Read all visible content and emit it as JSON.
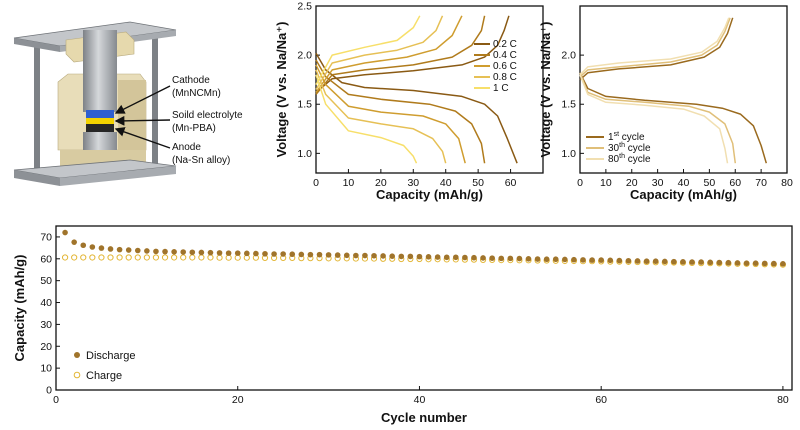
{
  "colors": {
    "ink": "#111111",
    "metal": "#9a9ea3",
    "metal_dark": "#6f7378",
    "plate": "#b9bcc0",
    "ceramic": "#e7dcb8",
    "ceramic_dark": "#cbbd92",
    "cathode": "#2f5fd0",
    "electrolyte": "#f2d200",
    "anode": "#262626",
    "discharge": "#a0742b",
    "charge": "#e3b635",
    "rate_colors": [
      "#8a5a14",
      "#b07b1c",
      "#cf9d2f",
      "#e6c055",
      "#f7df6a"
    ],
    "cycle_colors": [
      "#9a6a1e",
      "#e0bf79",
      "#f1dfb1"
    ]
  },
  "cell_diagram": {
    "labels": [
      {
        "line1": "Cathode",
        "line2": "(MnNCMn)"
      },
      {
        "line1": "Soild electrolyte",
        "line2": "(Mn-PBA)"
      },
      {
        "line1": "Anode",
        "line2": "(Na-Sn alloy)"
      }
    ]
  },
  "chart_data": [
    {
      "id": "rate",
      "type": "line",
      "xlabel": "Capacity (mAh/g)",
      "ylabel": "Voltage (V vs. Na/Na⁺)",
      "xlim": [
        0,
        70
      ],
      "ylim": [
        0.8,
        2.5
      ],
      "xticks": [
        0,
        10,
        20,
        30,
        40,
        50,
        60
      ],
      "yticks": [
        1.0,
        1.5,
        2.0,
        2.5
      ],
      "ytick_labels": [
        "1.0",
        "1.5",
        "2.0",
        "2.5"
      ],
      "legend": "top-right",
      "series": [
        {
          "name": "0.2 C",
          "discharge": [
            [
              0,
              2.02
            ],
            [
              3,
              1.85
            ],
            [
              8,
              1.72
            ],
            [
              15,
              1.67
            ],
            [
              30,
              1.64
            ],
            [
              45,
              1.58
            ],
            [
              52,
              1.5
            ],
            [
              56,
              1.38
            ],
            [
              59,
              1.15
            ],
            [
              62,
              0.9
            ]
          ],
          "charge": [
            [
              0,
              1.62
            ],
            [
              5,
              1.76
            ],
            [
              15,
              1.8
            ],
            [
              30,
              1.84
            ],
            [
              45,
              1.9
            ],
            [
              52,
              1.98
            ],
            [
              56,
              2.1
            ],
            [
              58,
              2.25
            ],
            [
              59.5,
              2.4
            ]
          ]
        },
        {
          "name": "0.4 C",
          "discharge": [
            [
              0,
              1.95
            ],
            [
              3,
              1.78
            ],
            [
              10,
              1.6
            ],
            [
              20,
              1.55
            ],
            [
              35,
              1.5
            ],
            [
              43,
              1.43
            ],
            [
              48,
              1.3
            ],
            [
              51,
              1.1
            ],
            [
              52,
              0.9
            ]
          ],
          "charge": [
            [
              0,
              1.6
            ],
            [
              5,
              1.8
            ],
            [
              15,
              1.85
            ],
            [
              30,
              1.9
            ],
            [
              42,
              1.98
            ],
            [
              48,
              2.1
            ],
            [
              51,
              2.25
            ],
            [
              52,
              2.4
            ]
          ]
        },
        {
          "name": "0.6 C",
          "discharge": [
            [
              0,
              1.9
            ],
            [
              3,
              1.7
            ],
            [
              10,
              1.48
            ],
            [
              20,
              1.42
            ],
            [
              33,
              1.38
            ],
            [
              40,
              1.3
            ],
            [
              44,
              1.15
            ],
            [
              46,
              0.9
            ]
          ],
          "charge": [
            [
              0,
              1.62
            ],
            [
              5,
              1.85
            ],
            [
              15,
              1.92
            ],
            [
              28,
              1.98
            ],
            [
              37,
              2.06
            ],
            [
              42,
              2.2
            ],
            [
              45,
              2.4
            ]
          ]
        },
        {
          "name": "0.8 C",
          "discharge": [
            [
              0,
              1.85
            ],
            [
              3,
              1.6
            ],
            [
              10,
              1.36
            ],
            [
              20,
              1.3
            ],
            [
              30,
              1.25
            ],
            [
              36,
              1.15
            ],
            [
              39,
              1.02
            ],
            [
              40,
              0.9
            ]
          ],
          "charge": [
            [
              0,
              1.65
            ],
            [
              5,
              1.92
            ],
            [
              15,
              2.0
            ],
            [
              25,
              2.05
            ],
            [
              33,
              2.13
            ],
            [
              37,
              2.25
            ],
            [
              39,
              2.4
            ]
          ]
        },
        {
          "name": "1 C",
          "discharge": [
            [
              0,
              1.8
            ],
            [
              3,
              1.5
            ],
            [
              10,
              1.23
            ],
            [
              20,
              1.16
            ],
            [
              27,
              1.08
            ],
            [
              30,
              0.97
            ],
            [
              31,
              0.9
            ]
          ],
          "charge": [
            [
              0,
              1.7
            ],
            [
              5,
              2.0
            ],
            [
              15,
              2.08
            ],
            [
              25,
              2.15
            ],
            [
              30,
              2.28
            ],
            [
              32,
              2.4
            ]
          ]
        }
      ]
    },
    {
      "id": "cycles",
      "type": "line",
      "xlabel": "Capacity (mAh/g)",
      "ylabel": "Voltage (V vs. Na/Na⁺)",
      "xlim": [
        0,
        80
      ],
      "ylim": [
        0.8,
        2.5
      ],
      "xticks": [
        0,
        10,
        20,
        30,
        40,
        50,
        60,
        70,
        80
      ],
      "yticks": [
        1.0,
        1.5,
        2.0
      ],
      "ytick_labels": [
        "1.0",
        "1.5",
        "2.0"
      ],
      "legend": "bottom-right",
      "series": [
        {
          "name": "1st cycle",
          "name_base": "1",
          "name_sup": "st",
          "name_rest": " cycle",
          "discharge": [
            [
              0,
              1.82
            ],
            [
              3,
              1.66
            ],
            [
              10,
              1.58
            ],
            [
              25,
              1.54
            ],
            [
              45,
              1.5
            ],
            [
              55,
              1.46
            ],
            [
              62,
              1.4
            ],
            [
              67,
              1.28
            ],
            [
              70,
              1.08
            ],
            [
              72,
              0.9
            ]
          ],
          "charge": [
            [
              0,
              1.75
            ],
            [
              3,
              1.82
            ],
            [
              15,
              1.86
            ],
            [
              35,
              1.9
            ],
            [
              48,
              1.98
            ],
            [
              54,
              2.08
            ],
            [
              57,
              2.22
            ],
            [
              59,
              2.38
            ]
          ]
        },
        {
          "name": "30th cycle",
          "name_base": "30",
          "name_sup": "th",
          "name_rest": " cycle",
          "discharge": [
            [
              0,
              1.82
            ],
            [
              3,
              1.62
            ],
            [
              10,
              1.55
            ],
            [
              25,
              1.52
            ],
            [
              42,
              1.48
            ],
            [
              50,
              1.42
            ],
            [
              56,
              1.3
            ],
            [
              59,
              1.1
            ],
            [
              60,
              0.9
            ]
          ],
          "charge": [
            [
              0,
              1.78
            ],
            [
              3,
              1.85
            ],
            [
              15,
              1.88
            ],
            [
              35,
              1.93
            ],
            [
              47,
              2.0
            ],
            [
              53,
              2.1
            ],
            [
              56,
              2.24
            ],
            [
              58,
              2.38
            ]
          ]
        },
        {
          "name": "80th cycle",
          "name_base": "80",
          "name_sup": "th",
          "name_rest": " cycle",
          "discharge": [
            [
              0,
              1.8
            ],
            [
              3,
              1.6
            ],
            [
              10,
              1.52
            ],
            [
              25,
              1.49
            ],
            [
              40,
              1.45
            ],
            [
              48,
              1.38
            ],
            [
              54,
              1.25
            ],
            [
              56,
              1.05
            ],
            [
              57,
              0.9
            ]
          ],
          "charge": [
            [
              0,
              1.8
            ],
            [
              3,
              1.88
            ],
            [
              15,
              1.92
            ],
            [
              35,
              1.96
            ],
            [
              47,
              2.03
            ],
            [
              53,
              2.14
            ],
            [
              56,
              2.28
            ],
            [
              57.5,
              2.38
            ]
          ]
        }
      ]
    },
    {
      "id": "cycling",
      "type": "scatter",
      "xlabel": "Cycle number",
      "ylabel": "Capacity (mAh/g)",
      "xlim": [
        0,
        81
      ],
      "ylim": [
        0,
        75
      ],
      "xticks": [
        0,
        20,
        40,
        60,
        80
      ],
      "yticks": [
        0,
        10,
        20,
        30,
        40,
        50,
        60,
        70
      ],
      "legend": "bottom-left",
      "series": [
        {
          "name": "Discharge",
          "marker": "filled",
          "values": [
            72.0,
            67.6,
            66.2,
            65.4,
            64.9,
            64.5,
            64.2,
            64.0,
            63.8,
            63.6,
            63.4,
            63.3,
            63.2,
            63.1,
            63.0,
            62.9,
            62.8,
            62.7,
            62.6,
            62.6,
            62.5,
            62.4,
            62.3,
            62.2,
            62.2,
            62.1,
            62.0,
            61.9,
            61.9,
            61.8,
            61.7,
            61.6,
            61.5,
            61.5,
            61.4,
            61.3,
            61.2,
            61.1,
            61.1,
            61.0,
            60.9,
            60.8,
            60.7,
            60.7,
            60.6,
            60.5,
            60.4,
            60.3,
            60.2,
            60.2,
            60.1,
            60.0,
            59.9,
            59.8,
            59.8,
            59.7,
            59.6,
            59.5,
            59.4,
            59.4,
            59.3,
            59.2,
            59.1,
            59.0,
            58.9,
            58.9,
            58.8,
            58.7,
            58.6,
            58.5,
            58.5,
            58.4,
            58.3,
            58.2,
            58.1,
            58.0,
            58.0,
            57.9,
            57.8,
            57.7
          ]
        },
        {
          "name": "Charge",
          "marker": "open",
          "values": [
            60.6,
            60.6,
            60.6,
            60.6,
            60.6,
            60.6,
            60.6,
            60.6,
            60.6,
            60.6,
            60.6,
            60.6,
            60.6,
            60.6,
            60.6,
            60.6,
            60.6,
            60.5,
            60.5,
            60.5,
            60.5,
            60.5,
            60.4,
            60.4,
            60.4,
            60.4,
            60.3,
            60.3,
            60.3,
            60.2,
            60.2,
            60.2,
            60.1,
            60.1,
            60.1,
            60.0,
            60.0,
            59.9,
            59.9,
            59.9,
            59.8,
            59.8,
            59.7,
            59.7,
            59.6,
            59.6,
            59.5,
            59.5,
            59.4,
            59.4,
            59.3,
            59.3,
            59.2,
            59.2,
            59.1,
            59.0,
            59.0,
            58.9,
            58.9,
            58.8,
            58.7,
            58.7,
            58.6,
            58.5,
            58.5,
            58.4,
            58.3,
            58.3,
            58.2,
            58.1,
            58.0,
            58.0,
            57.9,
            57.8,
            57.7,
            57.7,
            57.6,
            57.5,
            57.4,
            57.3
          ]
        }
      ]
    }
  ]
}
